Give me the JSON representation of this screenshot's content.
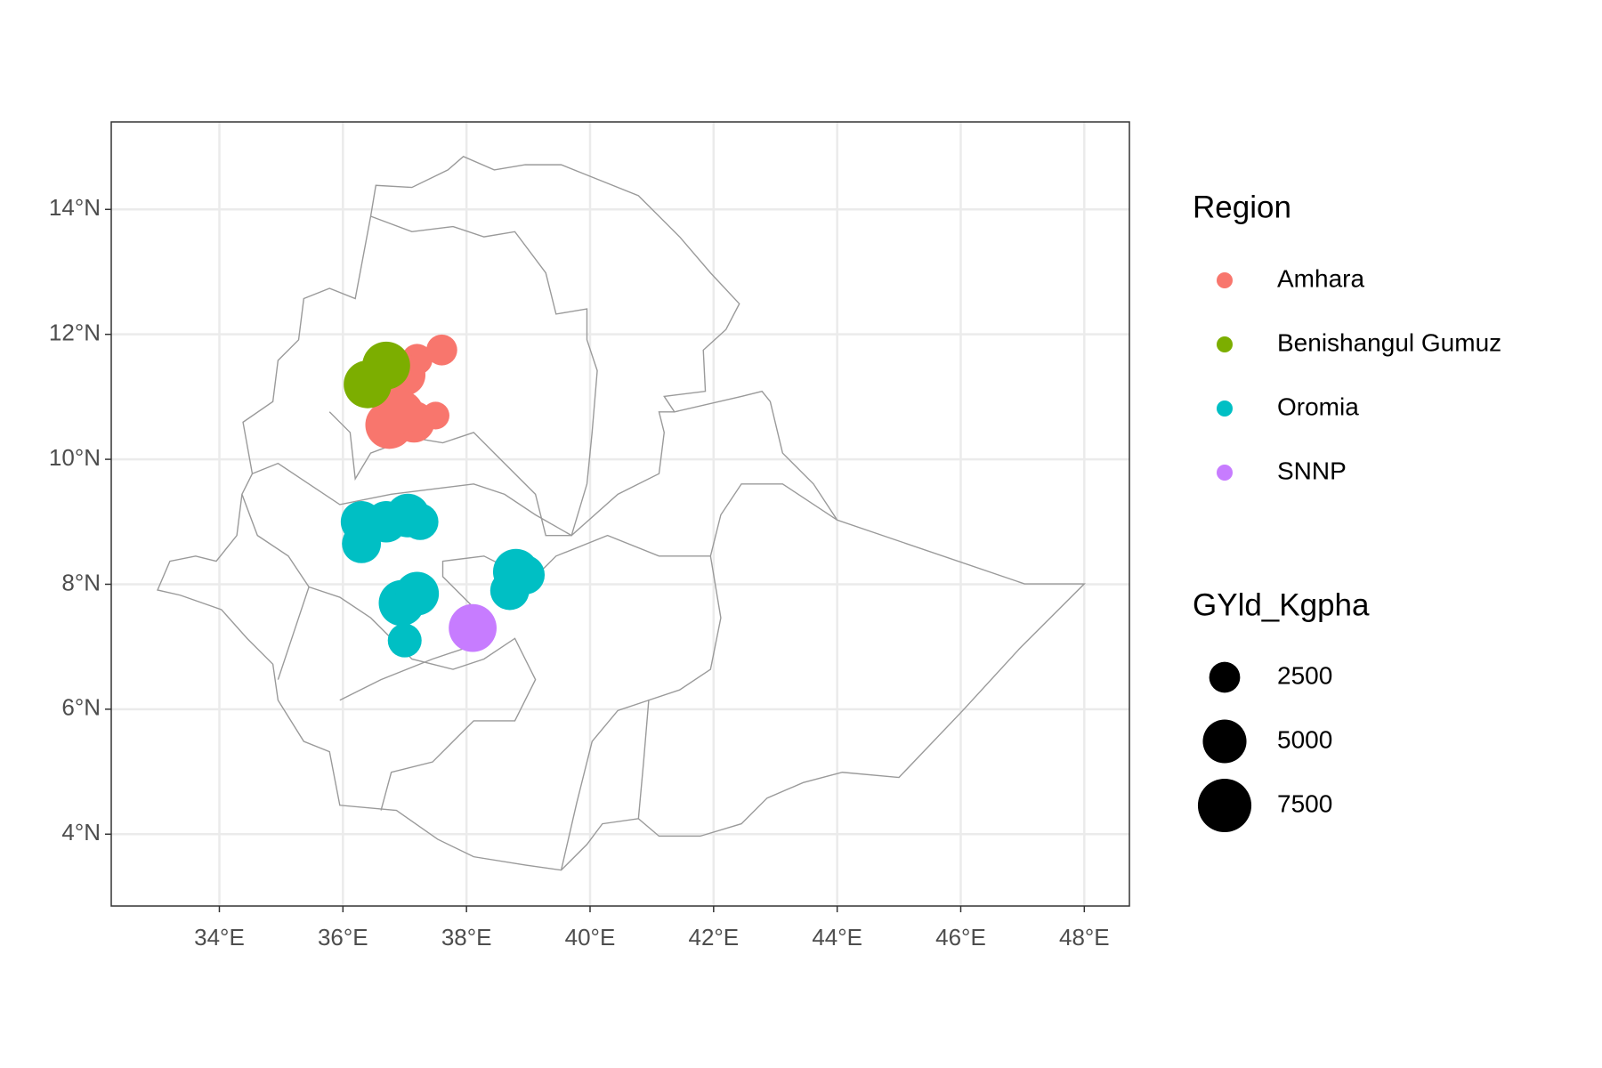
{
  "chart_data": {
    "type": "scatter",
    "xlim": [
      32.25,
      48.73
    ],
    "ylim": [
      2.85,
      15.4
    ],
    "xticks": [
      {
        "value": 34,
        "label": "34°E"
      },
      {
        "value": 36,
        "label": "36°E"
      },
      {
        "value": 38,
        "label": "38°E"
      },
      {
        "value": 40,
        "label": "40°E"
      },
      {
        "value": 42,
        "label": "42°E"
      },
      {
        "value": 44,
        "label": "44°E"
      },
      {
        "value": 46,
        "label": "46°E"
      },
      {
        "value": 48,
        "label": "48°E"
      }
    ],
    "yticks": [
      {
        "value": 4,
        "label": "4°N"
      },
      {
        "value": 6,
        "label": "6°N"
      },
      {
        "value": 8,
        "label": "8°N"
      },
      {
        "value": 10,
        "label": "10°N"
      },
      {
        "value": 12,
        "label": "12°N"
      },
      {
        "value": 14,
        "label": "14°N"
      }
    ],
    "grid": true,
    "legend_title": "Region",
    "size_legend": {
      "title": "GYld_Kgpha",
      "values": [
        2500,
        5000,
        7500
      ]
    },
    "series": [
      {
        "name": "Amhara",
        "color": "#F8766D",
        "x": [
          37.6,
          37.2,
          37.0,
          36.8,
          37.5,
          36.75,
          37.15,
          36.95
        ],
        "values": [
          11.75,
          11.6,
          11.35,
          10.9,
          10.7,
          10.55,
          10.6,
          10.75
        ],
        "sizes": [
          2500,
          2500,
          4500,
          3500,
          2000,
          6000,
          4500,
          5000
        ]
      },
      {
        "name": "Benishangul Gumuz",
        "color": "#7CAE00",
        "x": [
          36.7,
          36.4
        ],
        "values": [
          11.5,
          11.2
        ],
        "sizes": [
          6000,
          6000
        ]
      },
      {
        "name": "Oromia",
        "color": "#00BFC4",
        "x": [
          36.3,
          36.3,
          36.7,
          37.05,
          37.25,
          36.95,
          37.2,
          37.0,
          38.7,
          38.8,
          38.95
        ],
        "values": [
          9.0,
          8.65,
          9.0,
          9.1,
          9.0,
          7.7,
          7.85,
          7.1,
          7.9,
          8.2,
          8.15
        ],
        "sizes": [
          4500,
          4000,
          4500,
          5000,
          3500,
          5500,
          5000,
          3000,
          4000,
          5500,
          4000
        ]
      },
      {
        "name": "SNNP",
        "color": "#C77CFF",
        "x": [
          38.1
        ],
        "values": [
          7.3
        ],
        "sizes": [
          6000
        ]
      }
    ]
  }
}
